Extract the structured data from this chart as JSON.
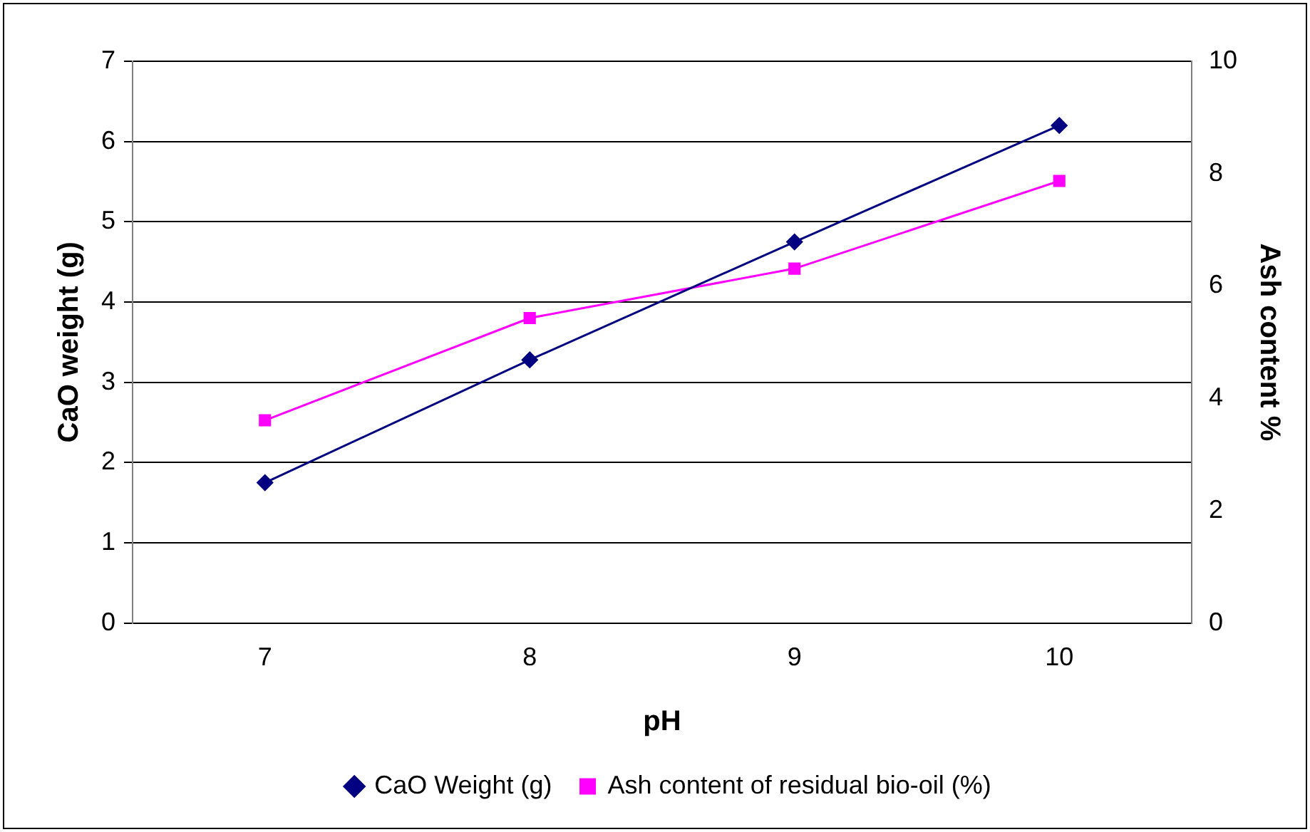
{
  "chart_data": {
    "type": "line",
    "xlabel": "pH",
    "ylabel": "CaO weight (g)",
    "y2label": "Ash content %",
    "categories": [
      "7",
      "8",
      "9",
      "10"
    ],
    "series": [
      {
        "name": "CaO Weight (g)",
        "color": "#000080",
        "values": [
          1.75,
          3.28,
          4.75,
          6.2
        ],
        "marker": "diamond"
      },
      {
        "name": "Ash content of residual bio-oil (%)",
        "color": "#ff00ff",
        "values": [
          3.61,
          5.43,
          6.31,
          7.87
        ],
        "marker": "square",
        "axis": "y2"
      }
    ],
    "ylim": [
      0,
      7
    ],
    "yticks": [
      0,
      1,
      2,
      3,
      4,
      5,
      6,
      7
    ],
    "y2lim": [
      0,
      10
    ],
    "y2ticks": [
      0,
      2,
      4,
      6,
      8,
      10
    ],
    "grid": "y",
    "legend": "bottom",
    "line_style": "solid"
  }
}
